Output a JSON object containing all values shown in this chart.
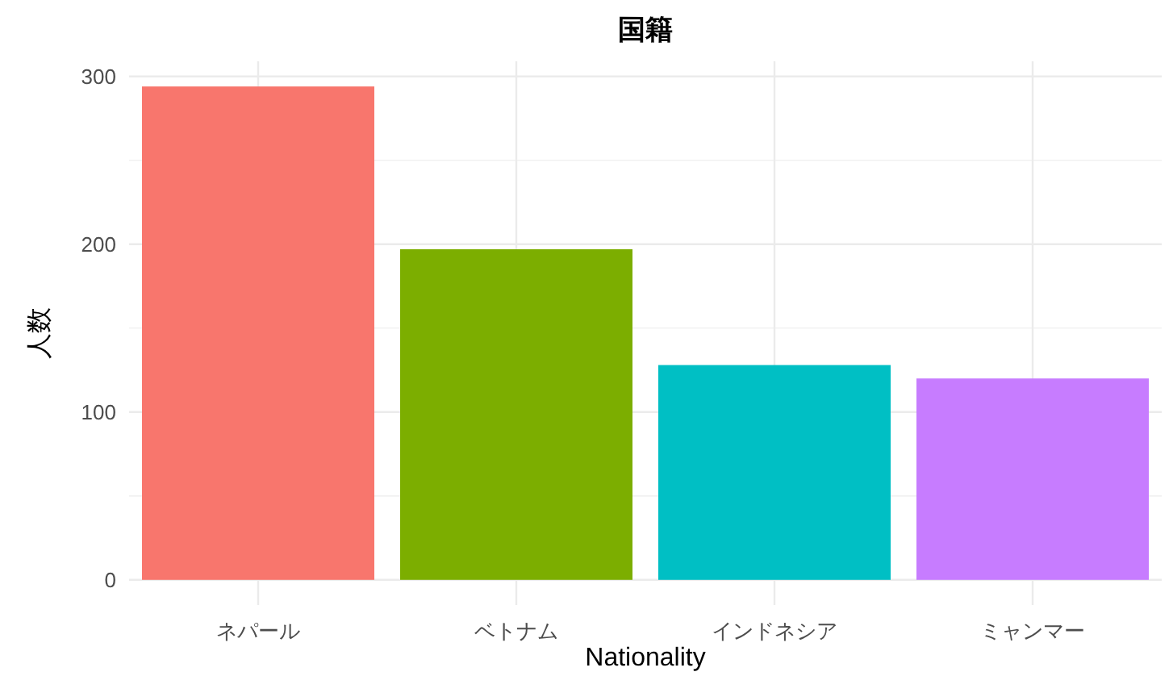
{
  "chart_data": {
    "type": "bar",
    "title": "国籍",
    "xlabel": "Nationality",
    "ylabel": "人数",
    "categories": [
      "ネパール",
      "ベトナム",
      "インドネシア",
      "ミャンマー"
    ],
    "values": [
      294,
      197,
      128,
      120
    ],
    "colors": [
      "#f8766d",
      "#7cae00",
      "#00bfc4",
      "#c77cff"
    ],
    "ylim": [
      -15,
      309
    ],
    "yticks": [
      0,
      {
        "value": 50,
        "label": null
      },
      100,
      {
        "value": 150,
        "label": null
      },
      200,
      {
        "value": 250,
        "label": null
      },
      300
    ],
    "grid": true
  }
}
